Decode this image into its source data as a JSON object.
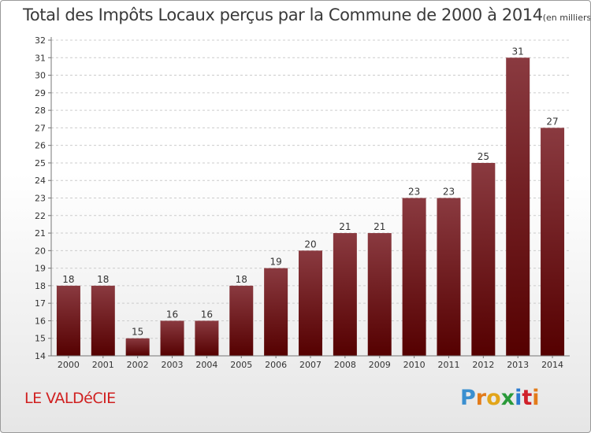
{
  "header": {
    "title": "Total des Impôts Locaux perçus par la Commune de 2000 à 2014",
    "unit": "(en milliers d'€)"
  },
  "footer": {
    "commune": "LE VALDéCIE",
    "brand_letters": [
      "P",
      "r",
      "o",
      "x",
      "i",
      "t",
      "i"
    ]
  },
  "colors": {
    "bar_top": "#8a3a40",
    "bar_bottom": "#550000",
    "axis": "#777777",
    "grid": "#cccccc",
    "text": "#333333",
    "commune": "#d02020",
    "brand": [
      "#3a8fd0",
      "#e27b1a",
      "#e2a51a",
      "#2a9a3a",
      "#2a7ad0",
      "#d0202a",
      "#e27b1a"
    ]
  },
  "chart_data": {
    "type": "bar",
    "title": "Total des Impôts Locaux perçus par la Commune de 2000 à 2014",
    "xlabel": "",
    "ylabel": "",
    "categories": [
      "2000",
      "2001",
      "2002",
      "2003",
      "2004",
      "2005",
      "2006",
      "2007",
      "2008",
      "2009",
      "2010",
      "2011",
      "2012",
      "2013",
      "2014"
    ],
    "values": [
      18,
      18,
      15,
      16,
      16,
      18,
      19,
      20,
      21,
      21,
      23,
      23,
      25,
      31,
      27
    ],
    "ylim": [
      14,
      32
    ],
    "yticks": [
      14,
      15,
      16,
      17,
      18,
      19,
      20,
      21,
      22,
      23,
      24,
      25,
      26,
      27,
      28,
      29,
      30,
      31,
      32
    ],
    "grid": true,
    "legend": "none"
  }
}
